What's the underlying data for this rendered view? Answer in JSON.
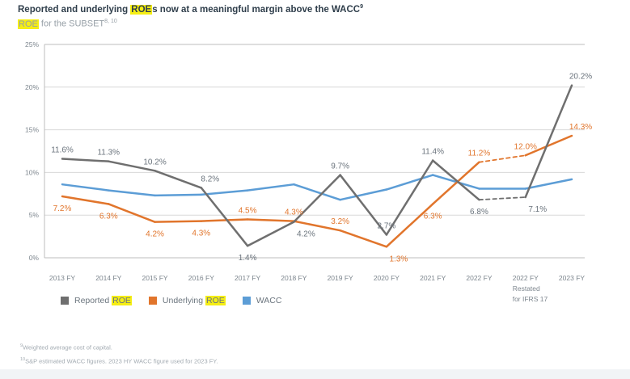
{
  "header": {
    "title_prefix": "Reported and underlying ",
    "title_highlight": "ROE",
    "title_suffix": "s now at a meaningful margin above the WACC",
    "title_superscript": "9",
    "subtitle_highlight": "ROE",
    "subtitle_text": " for the SUBSET",
    "subtitle_superscript": "8, 10"
  },
  "legend": [
    {
      "prefix": "Reported ",
      "highlight": "ROE",
      "color": "#6f6f6f"
    },
    {
      "prefix": "Underlying ",
      "highlight": "ROE",
      "color": "#e1752c"
    },
    {
      "prefix": "WACC",
      "highlight": "",
      "color": "#5c9dd6"
    }
  ],
  "footnotes": [
    {
      "superscript": "9",
      "text": "Weighted average cost of capital."
    },
    {
      "superscript": "10",
      "text": "S&P estimated WACC figures. 2023 HY WACC figure used for 2023 FY."
    }
  ],
  "chart_data": {
    "type": "line",
    "title": "Reported and underlying ROEs now at a meaningful margin above the WACC",
    "subtitle": "ROE for the SUBSET",
    "categories": [
      "2013 FY",
      "2014 FY",
      "2015 FY",
      "2016 FY",
      "2017 FY",
      "2018 FY",
      "2019 FY",
      "2020 FY",
      "2021 FY",
      "2022 FY",
      "2022 FY|Restated|for IFRS 17",
      "2023 FY"
    ],
    "ylim": [
      0,
      25
    ],
    "yticks": [
      0,
      5,
      10,
      15,
      20,
      25
    ],
    "ytick_suffix": "%",
    "grid": true,
    "legend_position": "bottom-left",
    "colors": {
      "grid": "#d8d8d8",
      "axis_border": "#bcbcbc",
      "tick_text": "#7d868e"
    },
    "series": [
      {
        "name": "Reported ROE",
        "color": "#6f6f6f",
        "label_color": "#6a737c",
        "values": [
          11.6,
          11.3,
          10.2,
          8.2,
          1.4,
          4.2,
          9.7,
          2.7,
          11.4,
          6.8,
          7.1,
          20.2
        ],
        "labels": [
          "11.6%",
          "11.3%",
          "10.2%",
          "8.2%",
          "1.4%",
          "4.2%",
          "9.7%",
          "2.7%",
          "11.4%",
          "6.8%",
          "7.1%",
          "20.2%"
        ],
        "label_pos": [
          "above",
          "above",
          "above",
          "above-right",
          "below",
          "below-right",
          "above",
          "above",
          "above",
          "below",
          "below-right",
          "above-right"
        ],
        "dashed_segments": [
          [
            9,
            10
          ]
        ]
      },
      {
        "name": "Underlying ROE",
        "color": "#e1752c",
        "label_color": "#e1752c",
        "values": [
          7.2,
          6.3,
          4.2,
          4.3,
          4.5,
          4.3,
          3.2,
          1.3,
          6.3,
          11.2,
          12.0,
          14.3
        ],
        "labels": [
          "7.2%",
          "6.3%",
          "4.2%",
          "4.3%",
          "4.5%",
          "4.3%",
          "3.2%",
          "1.3%",
          "6.3%",
          "11.2%",
          "12.0%",
          "14.3%"
        ],
        "label_pos": [
          "below",
          "below",
          "below",
          "below",
          "above",
          "above",
          "above",
          "below-right",
          "below",
          "above",
          "above",
          "above-right"
        ],
        "dashed_segments": [
          [
            9,
            10
          ]
        ]
      },
      {
        "name": "WACC",
        "color": "#5c9dd6",
        "label_color": null,
        "values": [
          8.6,
          7.9,
          7.3,
          7.4,
          7.9,
          8.6,
          6.8,
          8.0,
          9.7,
          8.1,
          8.1,
          9.2
        ],
        "labels": null,
        "label_pos": null,
        "dashed_segments": []
      }
    ]
  }
}
